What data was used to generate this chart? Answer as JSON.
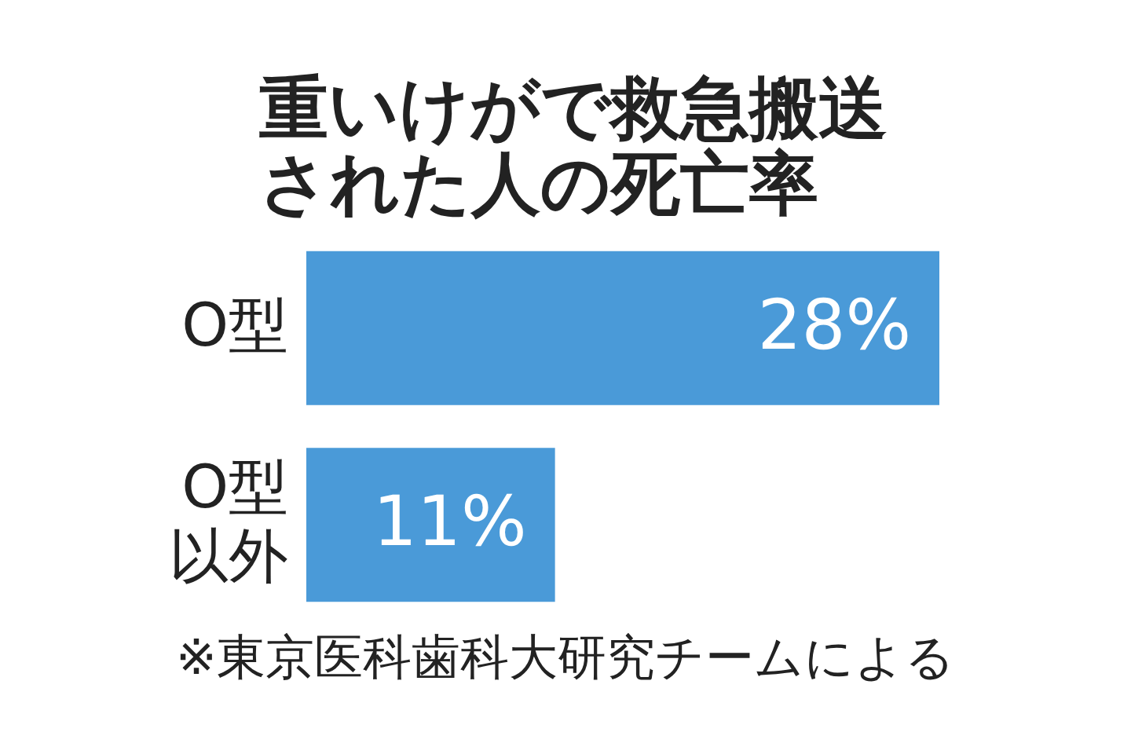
{
  "chart_data": {
    "type": "bar",
    "orientation": "horizontal",
    "title": "重いけがで救急搬送された人の死亡率",
    "categories": [
      "O型",
      "O型以外"
    ],
    "values": [
      28,
      11
    ],
    "color": "#4a9ad8",
    "value_labels": [
      "28%",
      "11%"
    ],
    "annotations": [
      "※東京医科歯科大研究チームによる"
    ]
  }
}
